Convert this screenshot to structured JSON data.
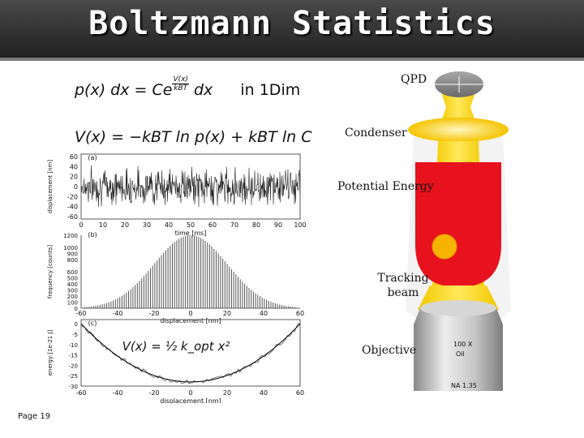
{
  "slide": {
    "title": "Boltzmann Statistics",
    "eq1": {
      "lhs": "p(x) dx = Ce",
      "exp_num": "V(x)",
      "exp_den": "kBT",
      "tail": "dx",
      "note": "in 1Dim"
    },
    "eq2": "V(x) = −kBT ln p(x) + kBT ln C",
    "labels": {
      "qpd": "QPD",
      "condenser": "Condenser",
      "potential": "Potential Energy",
      "tracking": "Tracking beam",
      "objective": "Objective",
      "mag": "100 X",
      "oil": "Oil",
      "na": "NA 1.35"
    },
    "footer": "Page  19"
  },
  "chart_data": [
    {
      "type": "line",
      "panel": "(a)",
      "xlabel": "time [ms]",
      "ylabel": "displacement [nm]",
      "xticks": [
        0,
        10,
        20,
        30,
        40,
        50,
        60,
        70,
        80,
        90,
        100
      ],
      "yticks": [
        60,
        40,
        20,
        0,
        -20,
        -40,
        -60
      ],
      "xlim": [
        0,
        100
      ],
      "ylim": [
        -65,
        65
      ],
      "signal": "noisy trace fluctuating around 0"
    },
    {
      "type": "bar",
      "panel": "(b)",
      "xlabel": "displacement [nm]",
      "ylabel": "frequency [counts]",
      "xticks": [
        -60,
        -40,
        -20,
        0,
        20,
        40,
        60
      ],
      "yticks": [
        1200,
        1000,
        900,
        800,
        600,
        500,
        400,
        300,
        200,
        100,
        0
      ],
      "xlim": [
        -60,
        60
      ],
      "ylim": [
        0,
        1200
      ],
      "peak": 1200,
      "width_sigma": 20
    },
    {
      "type": "line",
      "panel": "(c)",
      "xlabel": "displacement [nm]",
      "ylabel": "energy [1e-21 J]",
      "xticks": [
        -60,
        -40,
        -20,
        0,
        20,
        40,
        60
      ],
      "yticks": [
        0,
        -5,
        -10,
        -15,
        -20,
        -25,
        -30
      ],
      "xlim": [
        -60,
        60
      ],
      "ylim": [
        -30,
        2
      ],
      "equation": "V(x) = ½ k_opt x²",
      "min": -28
    }
  ]
}
